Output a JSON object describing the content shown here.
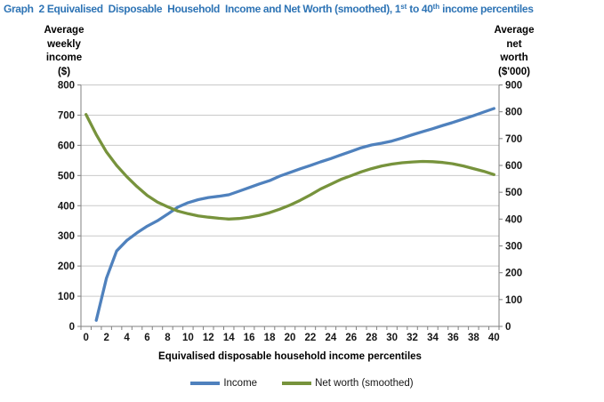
{
  "title": {
    "part1": "Graph  2 Equivalised  Disposable  Household  Income and Net Worth (smoothed), 1",
    "sup1": "st",
    "part2": " to 40",
    "sup2": "th",
    "part3": " income percentiles"
  },
  "legend": {
    "items": [
      {
        "label": "Income"
      },
      {
        "label": "Net worth (smoothed)"
      }
    ]
  },
  "chart_data": {
    "type": "line",
    "title": "Graph 2 Equivalised Disposable Household Income and Net Worth (smoothed), 1st to 40th income percentiles",
    "x_label": "Equivalised disposable household income percentiles",
    "legend_position": "bottom",
    "grid": true,
    "colors": {
      "title": "#2E74B5",
      "axis": "#808080",
      "gridline": "#C9C9C9",
      "tick_text": "#161616"
    },
    "y_left": {
      "label": "Average\nweekly\nincome\n($)",
      "min": 0,
      "max": 800,
      "step": 100,
      "ticks": [
        0,
        100,
        200,
        300,
        400,
        500,
        600,
        700,
        800
      ]
    },
    "y_right": {
      "label": "Average\nnet\nworth\n($'000)",
      "min": 0,
      "max": 900,
      "step": 100,
      "ticks": [
        0,
        100,
        200,
        300,
        400,
        500,
        600,
        700,
        800,
        900
      ]
    },
    "x": {
      "min": 0,
      "max": 40,
      "tick_step": 2,
      "ticks": [
        0,
        2,
        4,
        6,
        8,
        10,
        12,
        14,
        16,
        18,
        20,
        22,
        24,
        26,
        28,
        30,
        32,
        34,
        36,
        38,
        40
      ]
    },
    "series": [
      {
        "name": "Income",
        "axis": "left",
        "color": "#4F81BD",
        "data_name": "income-line",
        "x_start": 1,
        "values": [
          20,
          160,
          250,
          285,
          310,
          332,
          350,
          372,
          395,
          410,
          420,
          427,
          431,
          436,
          448,
          460,
          472,
          483,
          498,
          510,
          522,
          533,
          545,
          556,
          568,
          580,
          592,
          601,
          607,
          614,
          624,
          635,
          645,
          655,
          666,
          676,
          687,
          698,
          710,
          722
        ]
      },
      {
        "name": "Net worth (smoothed)",
        "axis": "right",
        "color": "#77933C",
        "data_name": "net-worth-line",
        "x_start": 0,
        "values": [
          790,
          715,
          650,
          600,
          558,
          521,
          488,
          463,
          446,
          430,
          420,
          412,
          407,
          403,
          400,
          402,
          407,
          414,
          424,
          437,
          452,
          470,
          490,
          512,
          530,
          548,
          562,
          576,
          588,
          598,
          605,
          610,
          613,
          615,
          614,
          611,
          606,
          598,
          588,
          578,
          566
        ]
      }
    ]
  }
}
